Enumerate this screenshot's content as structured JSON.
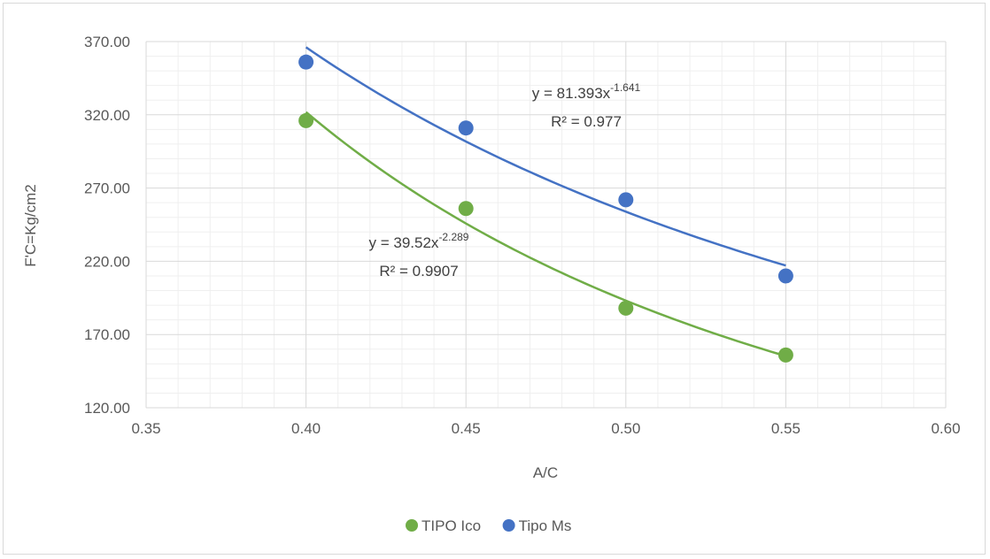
{
  "chart_data": {
    "type": "scatter",
    "title": "",
    "xlabel": "A/C",
    "ylabel": "F'C=Kg/cm2",
    "xlim": [
      0.35,
      0.6
    ],
    "ylim": [
      120,
      370
    ],
    "x_ticks": [
      "0.35",
      "0.40",
      "0.45",
      "0.50",
      "0.55",
      "0.60"
    ],
    "y_ticks": [
      "120.00",
      "170.00",
      "220.00",
      "270.00",
      "320.00",
      "370.00"
    ],
    "grid": true,
    "legend_position": "bottom",
    "series": [
      {
        "name": "TIPO Ico",
        "color": "#70ad47",
        "x": [
          0.4,
          0.45,
          0.5,
          0.55
        ],
        "y": [
          316,
          256,
          188,
          156
        ],
        "trendline": {
          "type": "power",
          "a": 39.52,
          "b": -2.289,
          "equation_prefix": "y = 39.52x",
          "equation_exponent": "-2.289",
          "r2_label": "R² = 0.9907"
        }
      },
      {
        "name": "Tipo Ms",
        "color": "#4472c4",
        "x": [
          0.4,
          0.45,
          0.5,
          0.55
        ],
        "y": [
          356,
          311,
          262,
          210
        ],
        "trendline": {
          "type": "power",
          "a": 81.393,
          "b": -1.641,
          "equation_prefix": "y = 81.393x",
          "equation_exponent": "-1.641",
          "r2_label": "R² = 0.977"
        }
      }
    ]
  }
}
